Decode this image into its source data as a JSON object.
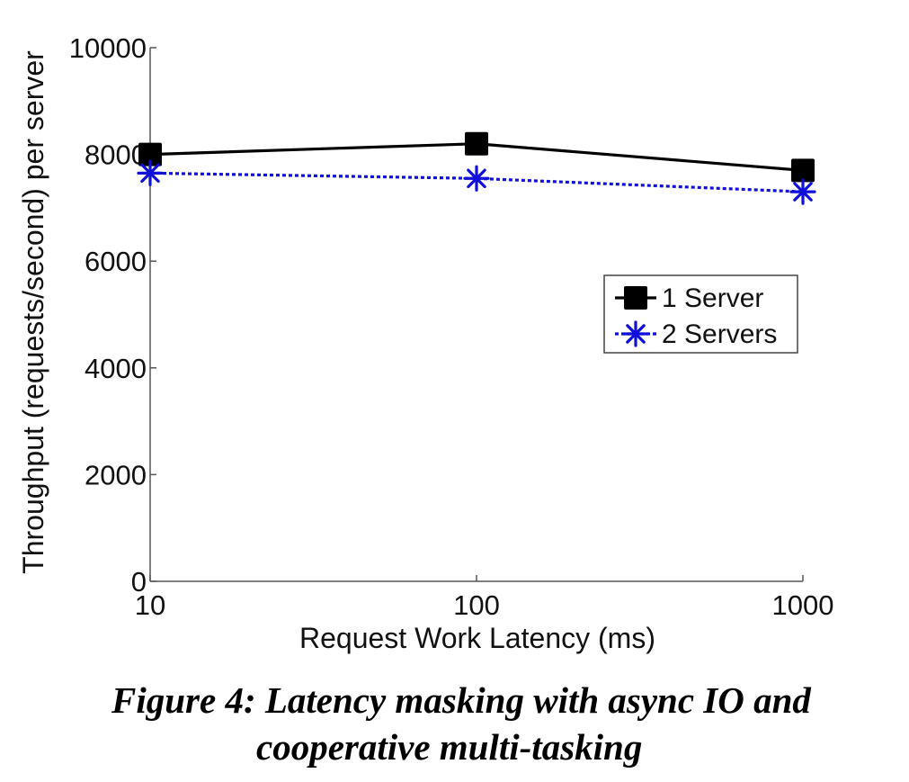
{
  "chart_data": {
    "type": "line",
    "x": [
      10,
      100,
      1000
    ],
    "x_ticks": [
      "10",
      "100",
      "1000"
    ],
    "x_scale": "log",
    "xlim": [
      10,
      1000
    ],
    "y_ticks": [
      "0",
      "2000",
      "4000",
      "6000",
      "8000",
      "10000"
    ],
    "ylim": [
      0,
      10000
    ],
    "xlabel": "Request Work Latency (ms)",
    "ylabel": "Throughput (requests/second) per server",
    "grid": false,
    "legend_position": "center-right",
    "series": [
      {
        "name": "1 Server",
        "values": [
          8000,
          8200,
          7700
        ],
        "color": "#000000",
        "marker": "square",
        "line_style": "solid"
      },
      {
        "name": "2 Servers",
        "values": [
          7650,
          7550,
          7300
        ],
        "color": "#1010d8",
        "marker": "asterisk",
        "line_style": "dotted"
      }
    ]
  },
  "caption": {
    "line1": "Figure 4: Latency masking with async IO and",
    "line2": "cooperative multi-tasking"
  }
}
